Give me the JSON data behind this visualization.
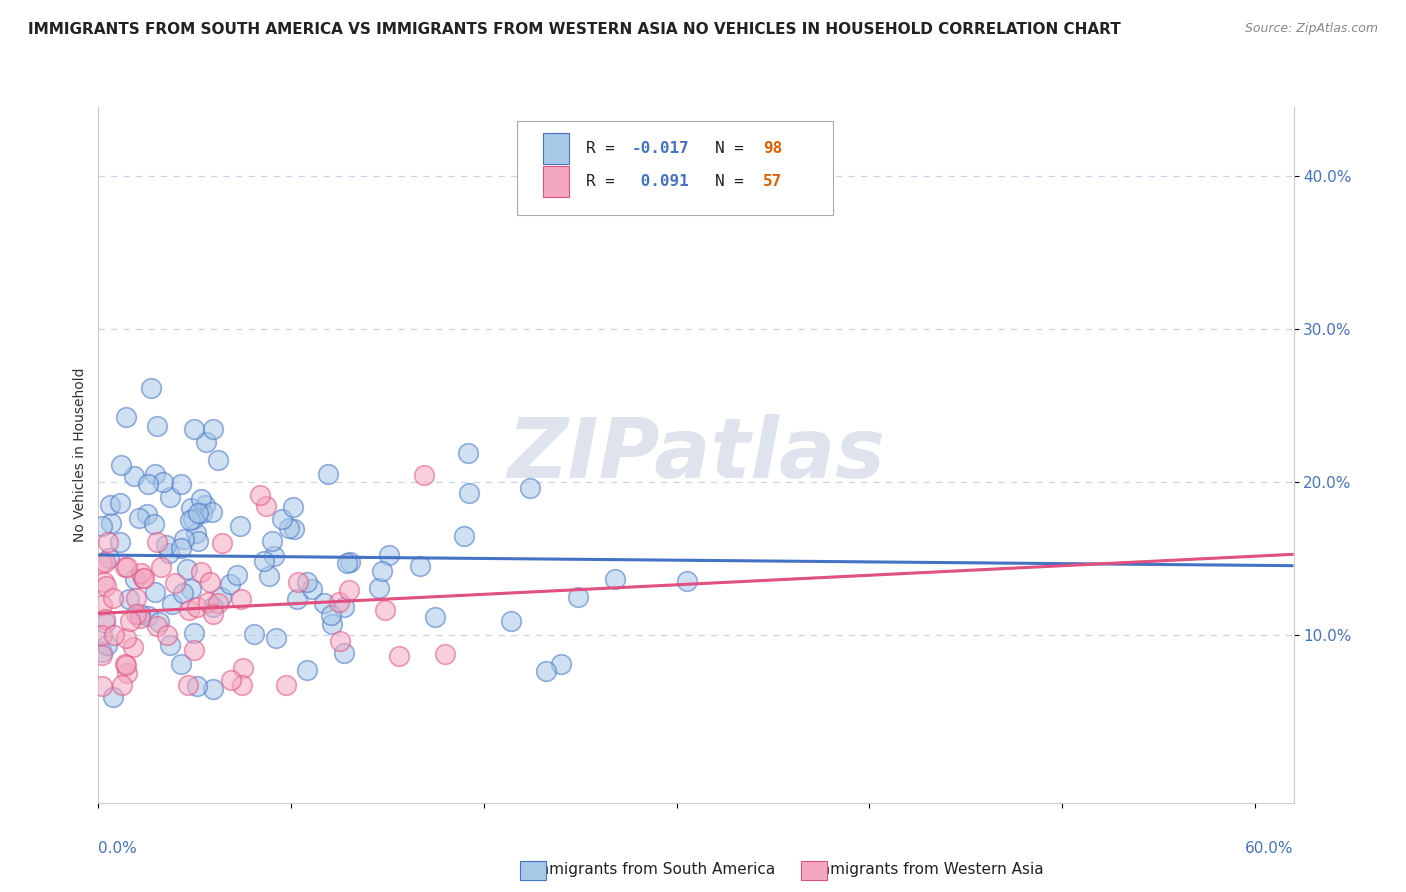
{
  "title": "IMMIGRANTS FROM SOUTH AMERICA VS IMMIGRANTS FROM WESTERN ASIA NO VEHICLES IN HOUSEHOLD CORRELATION CHART",
  "source": "Source: ZipAtlas.com",
  "ylabel": "No Vehicles in Household",
  "legend_label1": "Immigrants from South America",
  "legend_label2": "Immigrants from Western Asia",
  "color_blue": "#a8c8e8",
  "color_blue_line": "#4472c4",
  "color_pink": "#f4a8c0",
  "color_pink_line": "#e05080",
  "background_color": "#ffffff",
  "grid_color": "#c8d4e8",
  "watermark": "ZIPatlas",
  "blue_R": -0.017,
  "blue_N": 98,
  "pink_R": 0.091,
  "pink_N": 57,
  "xlim": [
    0.0,
    0.62
  ],
  "ylim": [
    -0.01,
    0.445
  ],
  "yticks": [
    0.1,
    0.2,
    0.3,
    0.4
  ],
  "ytick_labels": [
    "10.0%",
    "20.0%",
    "30.0%",
    "40.0%"
  ],
  "tick_color": "#4472c4",
  "title_fontsize": 11,
  "axis_label_fontsize": 10,
  "tick_fontsize": 11
}
